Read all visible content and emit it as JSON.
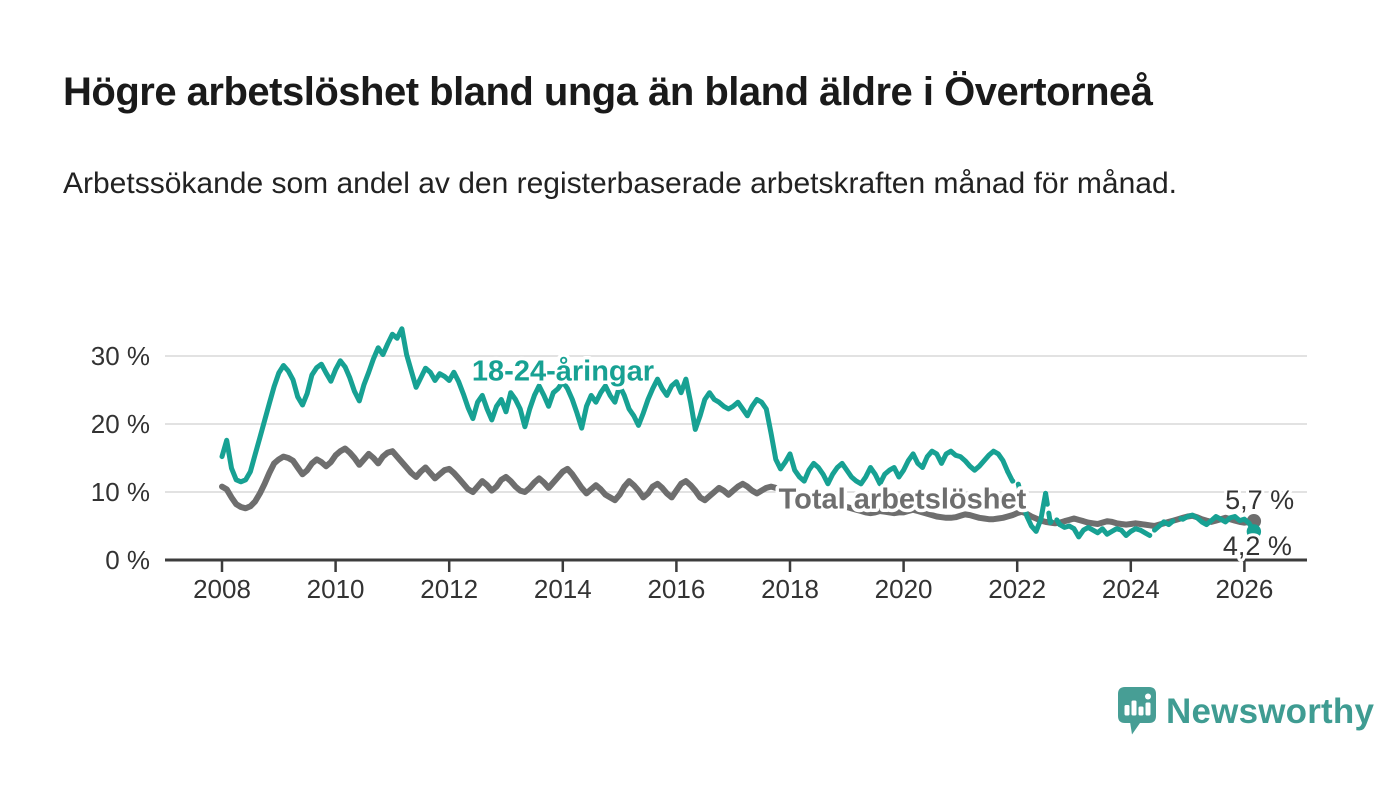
{
  "header": {
    "title": "Högre arbetslöshet bland unga än bland äldre i Övertorneå",
    "subtitle": "Arbetssökande som andel av den registerbaserade arbetskraften månad för månad."
  },
  "branding": {
    "logo_text": "Newsworthy",
    "logo_color": "#479e95",
    "logo_text_color": "#3f9c92"
  },
  "colors": {
    "youth_line": "#17a193",
    "total_line": "#6e6e6e",
    "grid": "#d8d8d8",
    "axis": "#3c3c3c",
    "tick_label": "#333333",
    "value_label": "#333333",
    "title": "#1a1a1a",
    "background": "#ffffff"
  },
  "chart_data": {
    "type": "line",
    "unit": "%",
    "grid": true,
    "legend_position": "inline",
    "x_axis": {
      "tick_years": [
        2008,
        2010,
        2012,
        2014,
        2016,
        2018,
        2020,
        2022,
        2024,
        2026
      ],
      "tick_labels": [
        "2008",
        "2010",
        "2012",
        "2014",
        "2016",
        "2018",
        "2020",
        "2022",
        "2024",
        "2026"
      ]
    },
    "y_axis": {
      "ticks": [
        0,
        10,
        20,
        30
      ],
      "tick_labels": [
        "0 %",
        "10 %",
        "20 %",
        "30 %"
      ],
      "max": 35
    },
    "xlim": [
      2007.0,
      2027.1
    ],
    "ylim": [
      0,
      35
    ],
    "series": [
      {
        "name": "Total arbetslöshet",
        "color": "#6e6e6e",
        "line_width": 6,
        "start_year": 2008,
        "frequency": "monthly",
        "end_dot": true,
        "end_label": "5,7 %",
        "end_label_pos": {
          "year": 2025.66,
          "value": 7.5
        },
        "inline_label": {
          "text": "Total arbetslöshet",
          "year": 2017.8,
          "value": 7.6
        },
        "values": [
          10.8,
          10.4,
          9.2,
          8.2,
          7.8,
          7.6,
          7.9,
          8.6,
          9.8,
          11.2,
          12.8,
          14.2,
          14.8,
          15.2,
          15.0,
          14.6,
          13.6,
          12.6,
          13.2,
          14.2,
          14.8,
          14.4,
          13.8,
          14.4,
          15.4,
          16.0,
          16.4,
          15.8,
          15.0,
          14.0,
          14.8,
          15.6,
          15.0,
          14.2,
          15.2,
          15.8,
          16.0,
          15.2,
          14.4,
          13.6,
          12.8,
          12.2,
          13.0,
          13.6,
          12.8,
          12.0,
          12.6,
          13.2,
          13.4,
          12.8,
          12.0,
          11.2,
          10.4,
          10.0,
          10.8,
          11.6,
          11.0,
          10.2,
          10.8,
          11.8,
          12.2,
          11.6,
          10.8,
          10.2,
          10.0,
          10.6,
          11.4,
          12.0,
          11.4,
          10.6,
          11.4,
          12.2,
          13.0,
          13.4,
          12.6,
          11.6,
          10.6,
          9.8,
          10.4,
          11.0,
          10.4,
          9.6,
          9.2,
          8.8,
          9.6,
          10.8,
          11.6,
          11.0,
          10.2,
          9.2,
          9.8,
          10.8,
          11.2,
          10.6,
          9.8,
          9.2,
          10.2,
          11.2,
          11.6,
          11.0,
          10.2,
          9.2,
          8.8,
          9.4,
          10.0,
          10.6,
          10.2,
          9.6,
          10.2,
          10.8,
          11.2,
          10.8,
          10.2,
          9.8,
          10.2,
          10.6,
          10.8,
          10.6,
          10.2,
          10.2,
          10.4,
          10.2,
          9.8,
          9.4,
          9.0,
          8.6,
          8.4,
          8.2,
          8.0,
          7.8,
          7.6,
          7.8,
          7.8,
          7.6,
          7.4,
          7.2,
          7.0,
          6.9,
          7.0,
          7.2,
          7.1,
          7.0,
          6.9,
          7.0,
          7.0,
          7.2,
          7.4,
          7.2,
          7.0,
          6.8,
          6.6,
          6.4,
          6.3,
          6.2,
          6.2,
          6.3,
          6.5,
          6.7,
          6.6,
          6.4,
          6.2,
          6.1,
          6.0,
          6.0,
          6.1,
          6.2,
          6.4,
          6.6,
          6.9,
          7.1,
          6.8,
          6.4,
          6.1,
          5.8,
          5.6,
          5.5,
          5.4,
          5.5,
          5.7,
          5.9,
          6.1,
          5.9,
          5.7,
          5.5,
          5.4,
          5.3,
          5.5,
          5.7,
          5.6,
          5.4,
          5.3,
          5.2,
          5.3,
          5.4,
          5.3,
          5.2,
          5.1,
          5.0,
          5.2,
          5.4,
          5.6,
          5.8,
          6.0,
          6.2,
          6.4,
          6.5,
          6.3,
          6.0,
          5.8,
          5.6,
          5.8,
          6.0,
          6.2,
          6.0,
          5.8,
          5.6,
          5.5,
          5.6,
          5.7
        ]
      },
      {
        "name": "18-24-åringar",
        "color": "#17a193",
        "line_width": 5,
        "start_year": 2008,
        "frequency": "monthly",
        "end_dot": true,
        "end_label": "4,2 %",
        "end_label_pos": {
          "year": 2025.62,
          "value": 0.7
        },
        "inline_label": {
          "text": "18-24-åringar",
          "year": 2012.4,
          "value": 26.4
        },
        "dashed_ranges": [
          [
            2021.85,
            2022.13
          ],
          [
            2022.54,
            2022.72
          ],
          [
            2024.15,
            2024.4
          ],
          [
            2024.56,
            2025.04
          ]
        ],
        "values": [
          15.2,
          17.6,
          13.5,
          11.8,
          11.5,
          11.8,
          13.0,
          15.5,
          18.0,
          20.5,
          23.0,
          25.5,
          27.5,
          28.6,
          27.8,
          26.5,
          24.0,
          22.8,
          24.5,
          27.2,
          28.3,
          28.8,
          27.5,
          26.3,
          28.0,
          29.3,
          28.4,
          26.8,
          24.8,
          23.4,
          25.8,
          27.6,
          29.6,
          31.2,
          30.2,
          31.8,
          33.2,
          32.6,
          34.0,
          30.2,
          27.8,
          25.4,
          26.8,
          28.2,
          27.6,
          26.4,
          27.4,
          27.0,
          26.4,
          27.6,
          26.2,
          24.4,
          22.4,
          20.8,
          23.2,
          24.2,
          22.2,
          20.6,
          22.6,
          23.6,
          21.8,
          24.6,
          23.6,
          22.2,
          19.6,
          22.2,
          24.2,
          25.6,
          24.2,
          22.6,
          24.6,
          25.2,
          26.2,
          25.2,
          23.6,
          21.6,
          19.4,
          22.6,
          24.2,
          23.2,
          24.6,
          25.6,
          24.2,
          23.2,
          25.6,
          24.2,
          22.2,
          21.2,
          19.8,
          21.6,
          23.6,
          25.2,
          26.6,
          25.2,
          24.2,
          25.6,
          26.2,
          24.6,
          26.6,
          23.2,
          19.2,
          21.2,
          23.6,
          24.6,
          23.6,
          23.2,
          22.6,
          22.2,
          22.6,
          23.2,
          22.2,
          21.2,
          22.6,
          23.6,
          23.2,
          22.2,
          18.6,
          14.8,
          13.4,
          14.4,
          15.6,
          13.2,
          12.2,
          11.6,
          13.2,
          14.2,
          13.6,
          12.6,
          11.2,
          12.6,
          13.6,
          14.2,
          13.2,
          12.2,
          11.6,
          11.2,
          12.2,
          13.6,
          12.6,
          11.2,
          12.6,
          13.2,
          13.6,
          12.2,
          13.2,
          14.6,
          15.6,
          14.2,
          13.6,
          15.2,
          16.0,
          15.6,
          14.2,
          15.6,
          16.0,
          15.4,
          15.2,
          14.6,
          13.8,
          13.2,
          13.8,
          14.6,
          15.4,
          16.0,
          15.6,
          14.6,
          13.0,
          11.6,
          11.8,
          9.0,
          6.5,
          5.0,
          4.2,
          6.0,
          9.8,
          5.5,
          6.3,
          5.2,
          4.8,
          5.0,
          4.6,
          3.4,
          4.4,
          4.8,
          4.4,
          4.0,
          4.6,
          3.8,
          4.2,
          4.6,
          4.4,
          3.6,
          4.2,
          4.6,
          4.4,
          4.0,
          3.6,
          4.4,
          5.0,
          5.6,
          5.2,
          5.8,
          6.2,
          6.0,
          6.4,
          6.6,
          6.2,
          5.6,
          5.2,
          5.8,
          6.4,
          6.0,
          5.6,
          6.2,
          6.4,
          5.8,
          6.0,
          5.4,
          4.2
        ]
      }
    ]
  }
}
